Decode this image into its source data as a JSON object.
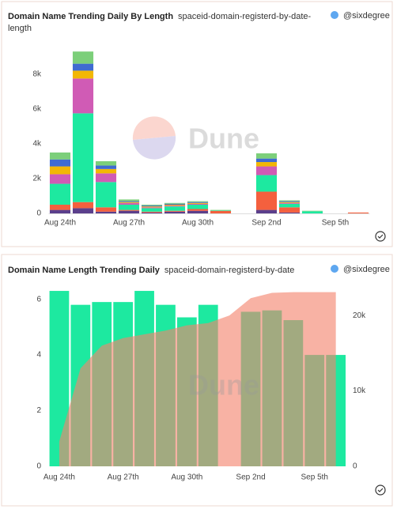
{
  "chart_data": [
    {
      "type": "stacked",
      "title": "Domain Name Trending Daily By Length",
      "query": "spaceid-domain-registerd-by-date-length",
      "author": "@sixdegree",
      "watermark": "Dune",
      "categories": [
        "Aug 24th",
        null,
        null,
        "Aug 27th",
        null,
        null,
        "Aug 30th",
        null,
        null,
        "Sep 2nd",
        null,
        null,
        "Sep 5th",
        null
      ],
      "series": [
        {
          "color": "#5b3f8c",
          "values": [
            200,
            300,
            100,
            150,
            50,
            100,
            150,
            0,
            0,
            200,
            50,
            0,
            0,
            0
          ]
        },
        {
          "color": "#f4603e",
          "values": [
            300,
            350,
            250,
            50,
            50,
            50,
            100,
            150,
            0,
            1050,
            300,
            0,
            0,
            50
          ]
        },
        {
          "color": "#1de9a0",
          "values": [
            1200,
            5100,
            1450,
            300,
            200,
            250,
            250,
            30,
            0,
            950,
            200,
            120,
            0,
            0
          ]
        },
        {
          "color": "#d05bb5",
          "values": [
            550,
            2000,
            500,
            100,
            50,
            50,
            50,
            0,
            0,
            500,
            50,
            0,
            0,
            0
          ]
        },
        {
          "color": "#f2b705",
          "values": [
            450,
            450,
            250,
            50,
            50,
            50,
            50,
            0,
            0,
            250,
            50,
            0,
            0,
            0
          ]
        },
        {
          "color": "#3f6bd1",
          "values": [
            400,
            400,
            200,
            50,
            50,
            50,
            50,
            0,
            0,
            200,
            50,
            0,
            0,
            0
          ]
        },
        {
          "color": "#7ccf7a",
          "values": [
            400,
            700,
            250,
            100,
            50,
            50,
            50,
            20,
            0,
            300,
            50,
            30,
            0,
            0
          ]
        }
      ],
      "ylim": [
        0,
        9400
      ],
      "yticks": [
        0,
        {
          "value": 2000,
          "label": "2k"
        },
        {
          "value": 4000,
          "label": "4k"
        },
        {
          "value": 6000,
          "label": "6k"
        },
        {
          "value": 8000,
          "label": "8k"
        }
      ],
      "grid": false
    },
    {
      "type": "combo",
      "title": "Domain Name Length Trending Daily",
      "query": "spaceid-domain-registerd-by-date",
      "author": "@sixdegree",
      "watermark": "Dune",
      "categories": [
        "Aug 24th",
        null,
        null,
        "Aug 27th",
        null,
        null,
        "Aug 30th",
        null,
        null,
        "Sep 2nd",
        null,
        null,
        "Sep 5th",
        null
      ],
      "series": [
        {
          "color": "#1de9a0",
          "values": [
            6.3,
            5.8,
            5.9,
            5.9,
            6.3,
            5.8,
            5.35,
            5.8,
            0,
            5.55,
            5.6,
            5.25,
            4.0,
            4.0
          ]
        },
        {
          "color": "#f4826c",
          "axis": "y2",
          "values": [
            3300,
            13000,
            16000,
            17000,
            17500,
            18000,
            18700,
            19000,
            20000,
            22300,
            23000,
            23100,
            23100,
            23100
          ]
        }
      ],
      "ylim": [
        0,
        6.5
      ],
      "yticks": [
        0,
        2,
        4,
        6
      ],
      "y2lim": [
        0,
        24000
      ],
      "y2ticks": [
        0,
        {
          "value": 10000,
          "label": "10k"
        },
        {
          "value": 20000,
          "label": "20k"
        }
      ],
      "grid": false
    }
  ]
}
